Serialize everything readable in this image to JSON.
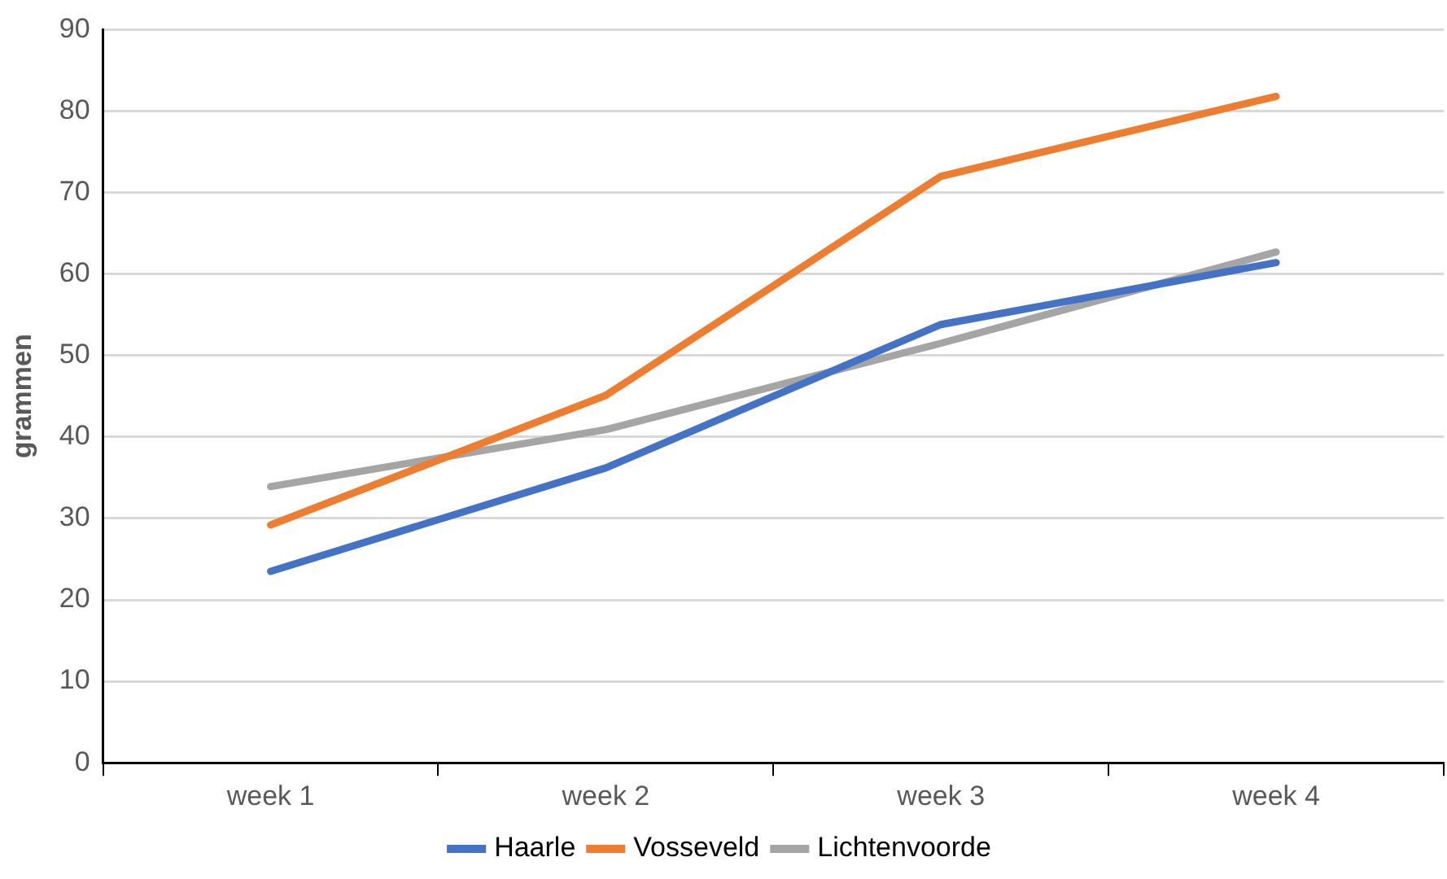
{
  "chart_data": {
    "type": "line",
    "ylabel": "grammen",
    "categories": [
      "week 1",
      "week 2",
      "week 3",
      "week 4"
    ],
    "series": [
      {
        "name": "Haarle",
        "color": "#4472c4",
        "values": [
          23.5,
          36.2,
          53.8,
          61.4
        ]
      },
      {
        "name": "Vosseveld",
        "color": "#ed7d31",
        "values": [
          29.2,
          45.1,
          72.0,
          81.8
        ]
      },
      {
        "name": "Lichtenvoorde",
        "color": "#a5a5a5",
        "values": [
          33.9,
          40.9,
          51.5,
          62.7
        ]
      }
    ],
    "ylim": [
      0,
      90
    ],
    "yticks": [
      0,
      10,
      20,
      30,
      40,
      50,
      60,
      70,
      80,
      90
    ],
    "grid": "y",
    "legend": "bottom",
    "marker": "none",
    "line_style": "solid"
  }
}
